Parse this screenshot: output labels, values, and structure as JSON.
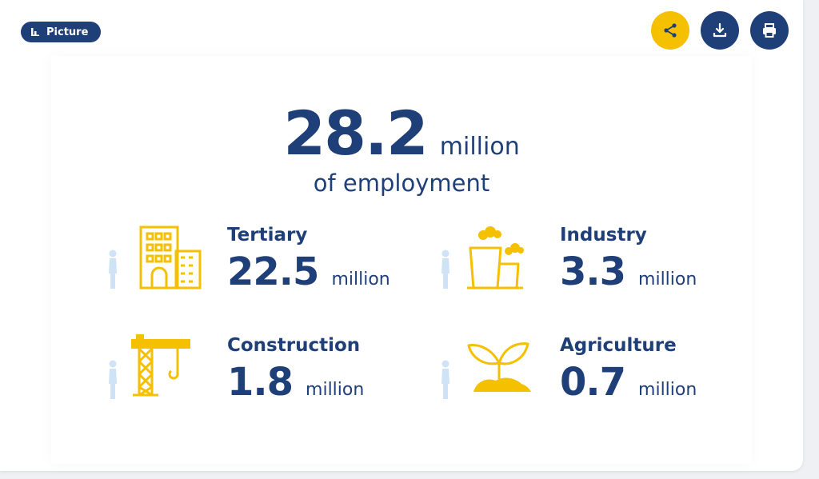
{
  "badge": {
    "label": "Picture",
    "icon": "bar-chart-icon"
  },
  "actions": {
    "share_icon": "share-icon",
    "download_icon": "download-icon",
    "print_icon": "print-icon"
  },
  "headline": {
    "value": "28.2",
    "unit": "million",
    "subtitle": "of employment"
  },
  "sectors": [
    {
      "name": "Tertiary",
      "value": "22.5",
      "unit": "million",
      "icon": "buildings-icon"
    },
    {
      "name": "Industry",
      "value": "3.3",
      "unit": "million",
      "icon": "factory-icon"
    },
    {
      "name": "Construction",
      "value": "1.8",
      "unit": "million",
      "icon": "crane-icon"
    },
    {
      "name": "Agriculture",
      "value": "0.7",
      "unit": "million",
      "icon": "sprout-icon"
    }
  ],
  "colors": {
    "navy": "#1f3f78",
    "yellow": "#f5c000",
    "person": "#cfe2f6"
  }
}
